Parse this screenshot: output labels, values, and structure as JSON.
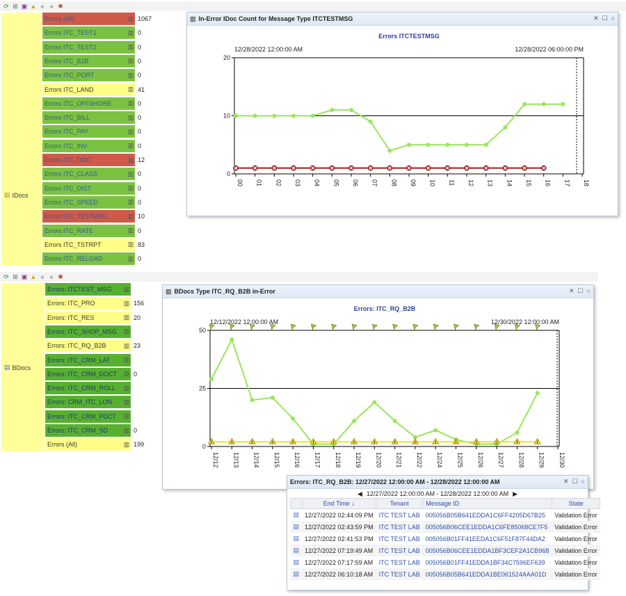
{
  "idocs": {
    "group_label": "IDocs",
    "rows": [
      {
        "label": "Errors (All)",
        "count": "1067",
        "color": "red"
      },
      {
        "label": "Errors ITC_TEST1",
        "count": "0",
        "color": "green"
      },
      {
        "label": "Errors ITC_TEST2",
        "count": "0",
        "color": "green"
      },
      {
        "label": "Errors ITC_B2B",
        "count": "0",
        "color": "green"
      },
      {
        "label": "Errors ITC_PORT",
        "count": "0",
        "color": "green"
      },
      {
        "label": "Errors ITC_LAND",
        "count": "41",
        "color": "yellow"
      },
      {
        "label": "Errors ITC_OFFSHORE",
        "count": "0",
        "color": "green"
      },
      {
        "label": "Errors ITC_BILL",
        "count": "0",
        "color": "green"
      },
      {
        "label": "Errors ITC_PAY",
        "count": "0",
        "color": "green"
      },
      {
        "label": "Errors ITC_INV",
        "count": "0",
        "color": "green"
      },
      {
        "label": "Errors ITC_DOC",
        "count": "12",
        "color": "red"
      },
      {
        "label": "Errors ITC_CLASS",
        "count": "0",
        "color": "green"
      },
      {
        "label": "Errors ITC_DIST",
        "count": "0",
        "color": "green"
      },
      {
        "label": "Errors ITC_SPEED",
        "count": "0",
        "color": "green"
      },
      {
        "label": "Errors ITC_TESTMSG",
        "count": "10",
        "color": "red"
      },
      {
        "label": "Errors ITC_RATE",
        "count": "0",
        "color": "green"
      },
      {
        "label": "Errors ITC_TSTRPT",
        "count": "83",
        "color": "yellow"
      },
      {
        "label": "Errors ITC_RELOAD",
        "count": "0",
        "color": "green"
      }
    ]
  },
  "bdocs": {
    "group_label": "BDocs",
    "rows": [
      {
        "label": "Errors: ITCTEST_MSG",
        "count": "",
        "color": "dkgreen"
      },
      {
        "label": "Errors: ITC_PRO",
        "count": "156",
        "color": "yellow"
      },
      {
        "label": "Errors: ITC_RES",
        "count": "20",
        "color": "yellow"
      },
      {
        "label": "Errors: ITC_SHOP_MSG",
        "count": "",
        "color": "dkgreen"
      },
      {
        "label": "Errors: ITC_RQ_B2B",
        "count": "23",
        "color": "yellow"
      },
      {
        "label": "Errors: ITC_CRM_LAT",
        "count": "",
        "color": "dkgreen"
      },
      {
        "label": "Errors: ITC_CRM_DOCT",
        "count": "0",
        "color": "dkgreen"
      },
      {
        "label": "Errors: ITC_CRM_ROLL",
        "count": "",
        "color": "dkgreen"
      },
      {
        "label": "Errors: CRM_ITC_LON",
        "count": "",
        "color": "dkgreen"
      },
      {
        "label": "Errors: ITC_CRM_PDCT",
        "count": "",
        "color": "dkgreen"
      },
      {
        "label": "Errors: ITC_CRM_SD",
        "count": "0",
        "color": "dkgreen"
      },
      {
        "label": "Errors (All)",
        "count": "199",
        "color": "yellow"
      }
    ]
  },
  "win1": {
    "title": "In-Error IDoc Count for Message Type ITCTESTMSG",
    "chart_title": "Errors ITCTESTMSG",
    "start_label": "12/28/2022 12:00:00 AM",
    "end_label": "12/28/2022 06:00:00 PM",
    "controls": [
      "✕",
      "☐",
      "○"
    ]
  },
  "win2": {
    "title": "BDocs Type ITC_RQ_B2B in-Error",
    "chart_title": "Errors: ITC_RQ_B2B",
    "start_label": "12/12/2022 12:00:00 AM",
    "end_label": "12/30/2022 12:00:00 AM",
    "controls": [
      "✕",
      "☐",
      "○"
    ]
  },
  "win3": {
    "title": "Errors: ITC_RQ_B2B: 12/27/2022 12:00:00 AM - 12/28/2022 12:00:00 AM",
    "nav_range": "12/27/2022 12:00:00 AM - 12/28/2022 12:00:00 AM",
    "prev": "◀",
    "next": "▶",
    "controls": [
      "✕",
      "☐",
      "○"
    ],
    "columns": [
      "End Time",
      "Tenant",
      "Message ID",
      "State"
    ],
    "sort_indicator": "↓",
    "rows": [
      {
        "time": "12/27/2022 02:44:09 PM",
        "tenant": "ITC TEST LAB",
        "id": "005056B05B641EDDA1C6FF4205D67B25",
        "state": "Validation Error"
      },
      {
        "time": "12/27/2022 02:43:59 PM",
        "tenant": "ITC TEST LAB",
        "id": "005056B06CEE1EDDA1C6FE85068CE7F5",
        "state": "Validation Error"
      },
      {
        "time": "12/27/2022 02:41:53 PM",
        "tenant": "ITC TEST LAB",
        "id": "005056B01FF41EEDA1C6F51F87F44DA2",
        "state": "Validation Error"
      },
      {
        "time": "12/27/2022 07:19:49 AM",
        "tenant": "ITC TEST LAB",
        "id": "005056B06CEE1EDDA1BF3CEF2A1CB968",
        "state": "Validation Error"
      },
      {
        "time": "12/27/2022 07:17:59 AM",
        "tenant": "ITC TEST LAB",
        "id": "005056B01FF41EDDA1BF34C7596EF639",
        "state": "Validation Error"
      },
      {
        "time": "12/27/2022 06:10:18 AM",
        "tenant": "ITC TEST LAB",
        "id": "005056B05B641EDDA1BE061524AAA01D",
        "state": "Validation Error"
      }
    ]
  },
  "chart_data": [
    {
      "type": "line",
      "title": "Errors ITCTESTMSG",
      "x": [
        "00",
        "01",
        "02",
        "03",
        "04",
        "05",
        "06",
        "07",
        "08",
        "09",
        "10",
        "11",
        "12",
        "13",
        "14",
        "15",
        "16",
        "17",
        "18"
      ],
      "ylim": [
        0,
        20
      ],
      "yticks": [
        0,
        10,
        20
      ],
      "grid": "horizontal",
      "series": [
        {
          "color": "#99e65a",
          "values": [
            10,
            10,
            10,
            10,
            10,
            11,
            11,
            9,
            4,
            5,
            5,
            5,
            5,
            5,
            8,
            12,
            12,
            12,
            null
          ]
        },
        {
          "color": "#b03030",
          "marker": "x",
          "values": [
            1,
            1,
            1,
            1,
            1,
            1,
            1,
            1,
            1,
            1,
            1,
            1,
            1,
            1,
            1,
            1,
            1,
            null,
            null
          ]
        }
      ]
    },
    {
      "type": "line",
      "title": "Errors: ITC_RQ_B2B",
      "x": [
        "12/12",
        "12/13",
        "12/14",
        "12/15",
        "12/16",
        "12/17",
        "12/18",
        "12/19",
        "12/20",
        "12/21",
        "12/22",
        "12/24",
        "12/25",
        "12/26",
        "12/27",
        "12/28",
        "12/29",
        "12/30"
      ],
      "ylim": [
        0,
        50
      ],
      "yticks": [
        0,
        25,
        50
      ],
      "grid": "horizontal",
      "series": [
        {
          "color": "#99e65a",
          "values": [
            29,
            46,
            20,
            21,
            12,
            1,
            1,
            11,
            19,
            11,
            4,
            7,
            3,
            1,
            1,
            6,
            23,
            null
          ]
        },
        {
          "color": "#e8e82a",
          "marker": "warning",
          "values": [
            2,
            2,
            2,
            2,
            2,
            2,
            2,
            2,
            2,
            2,
            2,
            2,
            2,
            2,
            2,
            2,
            2,
            null
          ]
        }
      ],
      "top_markers": "flag"
    }
  ]
}
